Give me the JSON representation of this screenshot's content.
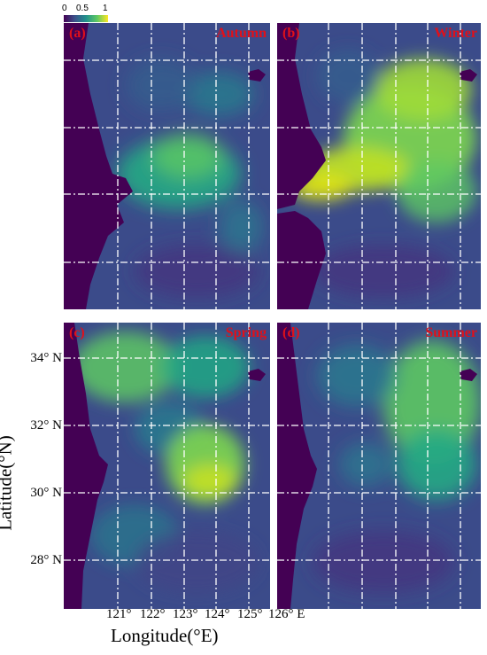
{
  "colorbar": {
    "ticks": [
      "0",
      "0.5",
      "1"
    ],
    "colors": [
      "#440154",
      "#3b528b",
      "#21908d",
      "#5dc863",
      "#fde725"
    ]
  },
  "panels": [
    {
      "label": "(a)",
      "season": "Autumn"
    },
    {
      "label": "(b)",
      "season": "Winter"
    },
    {
      "label": "(c)",
      "season": "Spring"
    },
    {
      "label": "(d)",
      "season": "Summer"
    }
  ],
  "axes": {
    "y_ticks": [
      "34° N",
      "32° N",
      "30° N",
      "28° N"
    ],
    "x_ticks": [
      "121°",
      "122°",
      "123°",
      "124°",
      "125°",
      "126° E"
    ],
    "y_label": "Latitude(°N)",
    "x_label": "Longitude(°E)"
  },
  "styles": {
    "land_color": "#440154",
    "sea_base": "#3e4a89",
    "label_color": "#e0101a",
    "grid_color": "#ffffff"
  }
}
